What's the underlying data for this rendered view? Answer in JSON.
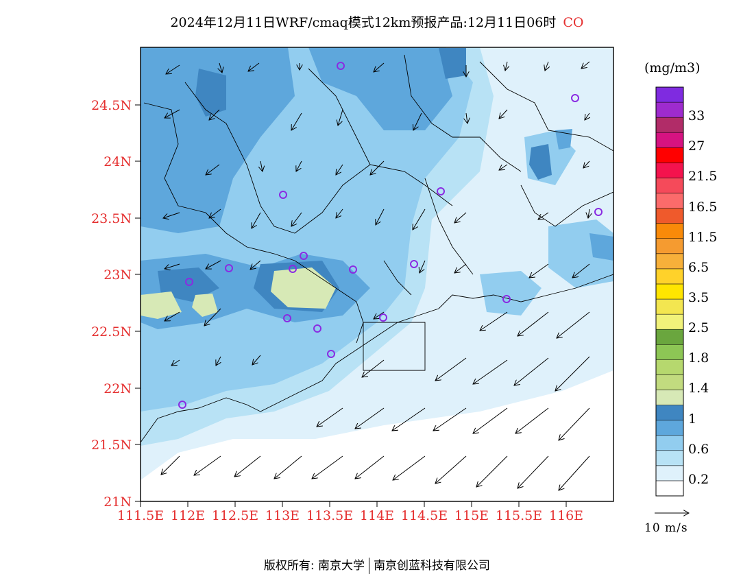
{
  "title": "2024年12月11日WRF/cmaq模式12km预报产品:12月11日06时",
  "species": "CO",
  "colorbar": {
    "unit_label": "(mg/m3)",
    "bins": [
      {
        "color": "#ffffff"
      },
      {
        "color": "#dff1fb"
      },
      {
        "color": "#b8e2f5"
      },
      {
        "color": "#92cdef"
      },
      {
        "color": "#5ea7dc"
      },
      {
        "color": "#3f86c1"
      },
      {
        "color": "#d7e9b6"
      },
      {
        "color": "#c2db7f"
      },
      {
        "color": "#b6d86e"
      },
      {
        "color": "#8dc655"
      },
      {
        "color": "#6aa63e"
      },
      {
        "color": "#f1f27a"
      },
      {
        "color": "#f3e650"
      },
      {
        "color": "#ffe500"
      },
      {
        "color": "#ffd22a"
      },
      {
        "color": "#f7b03a"
      },
      {
        "color": "#f59b30"
      },
      {
        "color": "#f98a09"
      },
      {
        "color": "#ef5a2c"
      },
      {
        "color": "#fb6b6b"
      },
      {
        "color": "#f54a5a"
      },
      {
        "color": "#f4134d"
      },
      {
        "color": "#ff0000"
      },
      {
        "color": "#d61381"
      },
      {
        "color": "#b12c68"
      },
      {
        "color": "#9e2bce"
      },
      {
        "color": "#7f2be0"
      }
    ],
    "labels": [
      "0.2",
      "0.6",
      "1",
      "1.4",
      "1.8",
      "2.5",
      "3.5",
      "6.5",
      "11.5",
      "16.5",
      "21.5",
      "27",
      "33"
    ]
  },
  "axes": {
    "x_ticks": [
      "111.5E",
      "112E",
      "112.5E",
      "113E",
      "113.5E",
      "114E",
      "114.5E",
      "115E",
      "115.5E",
      "116E"
    ],
    "y_ticks": [
      "21N",
      "21.5N",
      "22N",
      "22.5N",
      "23N",
      "23.5N",
      "24N",
      "24.5N"
    ]
  },
  "wind_reference": "10 m/s",
  "copyright": {
    "left": "版权所有: 南京大学",
    "right": "南京创蓝科技有限公司"
  },
  "colors": {
    "tick_text": "#e53030",
    "station_marker": "#8a2be2",
    "coastline": "#000000"
  }
}
